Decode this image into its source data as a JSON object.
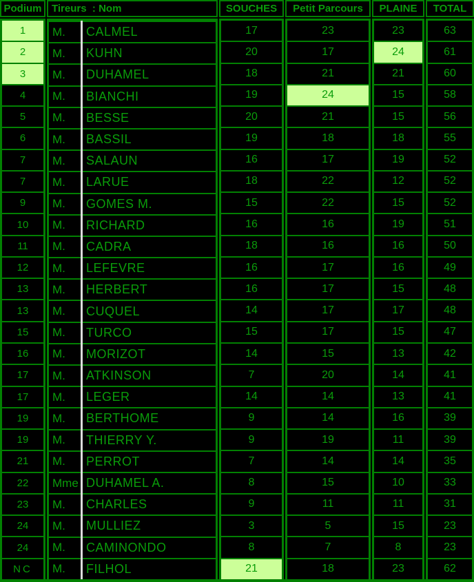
{
  "colors": {
    "background": "#000000",
    "grid_green": "#028102",
    "text_green": "#0a9c0a",
    "highlight_background": "#ccff99",
    "subcolumn_separator": "#dcdcdc"
  },
  "table": {
    "columns": [
      {
        "key": "podium",
        "label": "Podium"
      },
      {
        "key": "tireurs",
        "label": "Tireurs  : Nom"
      },
      {
        "key": "souches",
        "label": "SOUCHES"
      },
      {
        "key": "petit_parcours",
        "label": "Petit Parcours"
      },
      {
        "key": "plaine",
        "label": "PLAINE"
      },
      {
        "key": "total",
        "label": "TOTAL"
      }
    ],
    "rows": [
      {
        "podium": "1",
        "podium_highlight": true,
        "title": "M.",
        "name": "CALMEL",
        "souches": "17",
        "petit_parcours": "23",
        "plaine": "23",
        "total": "63",
        "highlight": ""
      },
      {
        "podium": "2",
        "podium_highlight": true,
        "title": "M.",
        "name": "KUHN",
        "souches": "20",
        "petit_parcours": "17",
        "plaine": "24",
        "total": "61",
        "highlight": "plaine"
      },
      {
        "podium": "3",
        "podium_highlight": true,
        "title": "M.",
        "name": "DUHAMEL",
        "souches": "18",
        "petit_parcours": "21",
        "plaine": "21",
        "total": "60",
        "highlight": ""
      },
      {
        "podium": "4",
        "podium_highlight": false,
        "title": "M.",
        "name": "BIANCHI",
        "souches": "19",
        "petit_parcours": "24",
        "plaine": "15",
        "total": "58",
        "highlight": "petit_parcours"
      },
      {
        "podium": "5",
        "podium_highlight": false,
        "title": "M.",
        "name": "BESSE",
        "souches": "20",
        "petit_parcours": "21",
        "plaine": "15",
        "total": "56",
        "highlight": ""
      },
      {
        "podium": "6",
        "podium_highlight": false,
        "title": "M.",
        "name": "BASSIL",
        "souches": "19",
        "petit_parcours": "18",
        "plaine": "18",
        "total": "55",
        "highlight": ""
      },
      {
        "podium": "7",
        "podium_highlight": false,
        "title": "M.",
        "name": "SALAUN",
        "souches": "16",
        "petit_parcours": "17",
        "plaine": "19",
        "total": "52",
        "highlight": ""
      },
      {
        "podium": "7",
        "podium_highlight": false,
        "title": "M.",
        "name": "LARUE",
        "souches": "18",
        "petit_parcours": "22",
        "plaine": "12",
        "total": "52",
        "highlight": ""
      },
      {
        "podium": "9",
        "podium_highlight": false,
        "title": "M.",
        "name": "GOMES M.",
        "souches": "15",
        "petit_parcours": "22",
        "plaine": "15",
        "total": "52",
        "highlight": ""
      },
      {
        "podium": "10",
        "podium_highlight": false,
        "title": "M.",
        "name": "RICHARD",
        "souches": "16",
        "petit_parcours": "16",
        "plaine": "19",
        "total": "51",
        "highlight": ""
      },
      {
        "podium": "11",
        "podium_highlight": false,
        "title": "M.",
        "name": "CADRA",
        "souches": "18",
        "petit_parcours": "16",
        "plaine": "16",
        "total": "50",
        "highlight": ""
      },
      {
        "podium": "12",
        "podium_highlight": false,
        "title": "M.",
        "name": "LEFEVRE",
        "souches": "16",
        "petit_parcours": "17",
        "plaine": "16",
        "total": "49",
        "highlight": ""
      },
      {
        "podium": "13",
        "podium_highlight": false,
        "title": "M.",
        "name": "HERBERT",
        "souches": "16",
        "petit_parcours": "17",
        "plaine": "15",
        "total": "48",
        "highlight": ""
      },
      {
        "podium": "13",
        "podium_highlight": false,
        "title": "M.",
        "name": "CUQUEL",
        "souches": "14",
        "petit_parcours": "17",
        "plaine": "17",
        "total": "48",
        "highlight": ""
      },
      {
        "podium": "15",
        "podium_highlight": false,
        "title": "M.",
        "name": "TURCO",
        "souches": "15",
        "petit_parcours": "17",
        "plaine": "15",
        "total": "47",
        "highlight": ""
      },
      {
        "podium": "16",
        "podium_highlight": false,
        "title": "M.",
        "name": "MORIZOT",
        "souches": "14",
        "petit_parcours": "15",
        "plaine": "13",
        "total": "42",
        "highlight": ""
      },
      {
        "podium": "17",
        "podium_highlight": false,
        "title": "M.",
        "name": "ATKINSON",
        "souches": "7",
        "petit_parcours": "20",
        "plaine": "14",
        "total": "41",
        "highlight": ""
      },
      {
        "podium": "17",
        "podium_highlight": false,
        "title": "M.",
        "name": "LEGER",
        "souches": "14",
        "petit_parcours": "14",
        "plaine": "13",
        "total": "41",
        "highlight": ""
      },
      {
        "podium": "19",
        "podium_highlight": false,
        "title": "M.",
        "name": "BERTHOME",
        "souches": "9",
        "petit_parcours": "14",
        "plaine": "16",
        "total": "39",
        "highlight": ""
      },
      {
        "podium": "19",
        "podium_highlight": false,
        "title": "M.",
        "name": "THIERRY Y.",
        "souches": "9",
        "petit_parcours": "19",
        "plaine": "11",
        "total": "39",
        "highlight": ""
      },
      {
        "podium": "21",
        "podium_highlight": false,
        "title": "M.",
        "name": "PERROT",
        "souches": "7",
        "petit_parcours": "14",
        "plaine": "14",
        "total": "35",
        "highlight": ""
      },
      {
        "podium": "22",
        "podium_highlight": false,
        "title": "Mme",
        "name": "DUHAMEL A.",
        "souches": "8",
        "petit_parcours": "15",
        "plaine": "10",
        "total": "33",
        "highlight": ""
      },
      {
        "podium": "23",
        "podium_highlight": false,
        "title": "M.",
        "name": "CHARLES",
        "souches": "9",
        "petit_parcours": "11",
        "plaine": "11",
        "total": "31",
        "highlight": ""
      },
      {
        "podium": "24",
        "podium_highlight": false,
        "title": "M.",
        "name": "MULLIEZ",
        "souches": "3",
        "petit_parcours": "5",
        "plaine": "15",
        "total": "23",
        "highlight": ""
      },
      {
        "podium": "24",
        "podium_highlight": false,
        "title": "M.",
        "name": "CAMINONDO",
        "souches": "8",
        "petit_parcours": "7",
        "plaine": "8",
        "total": "23",
        "highlight": ""
      },
      {
        "podium": "NC",
        "podium_highlight": false,
        "title": "M.",
        "name": "FILHOL",
        "souches": "21",
        "petit_parcours": "18",
        "plaine": "23",
        "total": "62",
        "highlight": "souches"
      }
    ]
  }
}
